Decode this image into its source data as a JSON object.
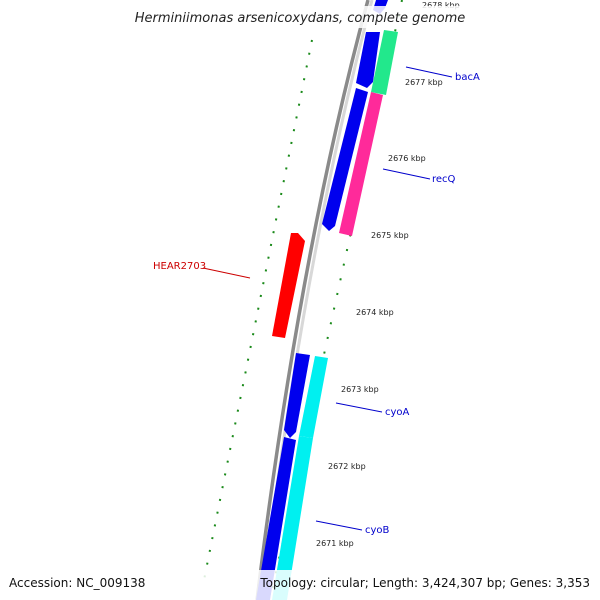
{
  "title": "Herminiimonas arsenicoxydans, complete genome",
  "footer": {
    "accession": "Accession: NC_009138",
    "topology": "Topology: circular; Length: 3,424,307 bp; Genes: 3,353"
  },
  "ticks": [
    "2678 kbp",
    "2677 kbp",
    "2676 kbp",
    "2675 kbp",
    "2674 kbp",
    "2673 kbp",
    "2672 kbp",
    "2671 kbp"
  ],
  "genes": [
    {
      "label": "bacA",
      "color": "#0000cc"
    },
    {
      "label": "recQ",
      "color": "#0000cc"
    },
    {
      "label": "HEAR2703",
      "color": "#cc0000"
    },
    {
      "label": "cyoA",
      "color": "#0000cc"
    },
    {
      "label": "cyoB",
      "color": "#0000cc"
    }
  ],
  "colors": {
    "forward_cds": "#0000ee",
    "reverse_cds": "#ff0000",
    "bacA_track": "#22e88c",
    "recQ_track": "#ff2a9a",
    "cyo_track": "#00f0f0",
    "tick_marks": "#1a8a1a",
    "backbone": "#8a8a8a"
  }
}
